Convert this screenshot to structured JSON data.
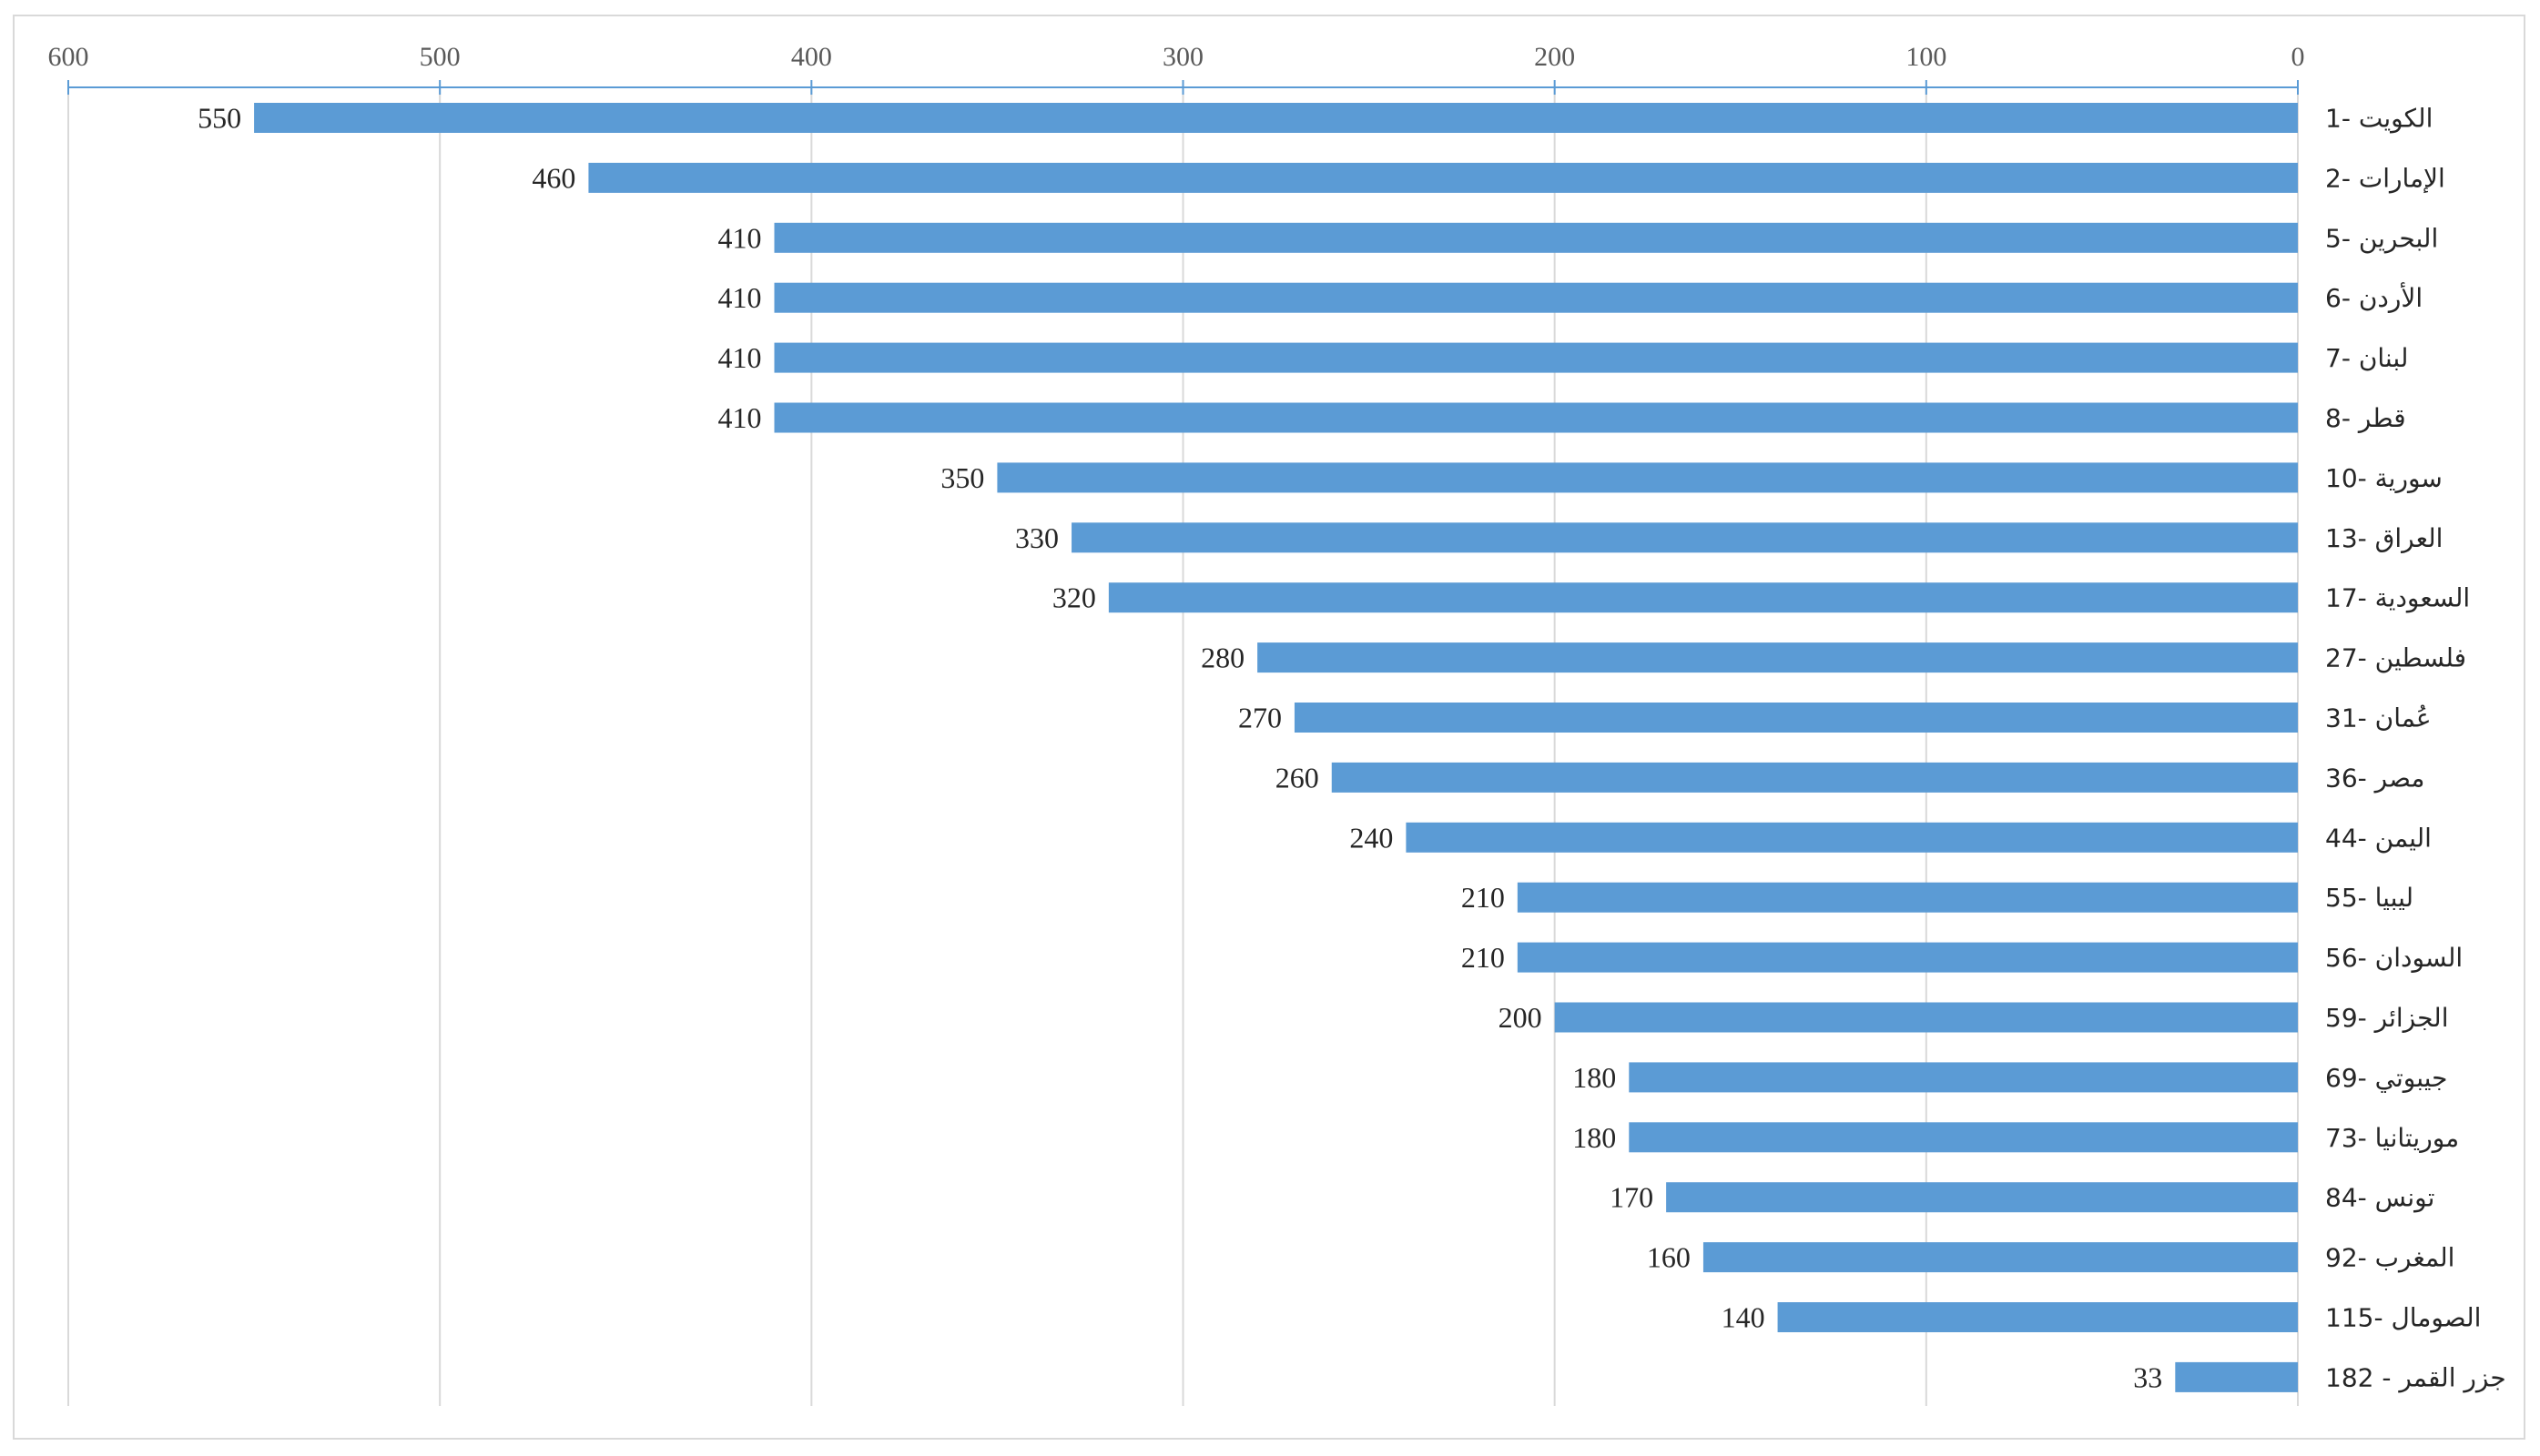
{
  "chart_data": {
    "type": "bar",
    "orientation": "horizontal",
    "x_axis_position": "top",
    "x_axis_reversed": true,
    "categories": [
      "1- الكويت",
      "2- الإمارات",
      "5- البحرين",
      "6- الأردن",
      "7- لبنان",
      "8- قطر",
      "10- سورية",
      "13- العراق",
      "17- السعودية",
      "27- فلسطين",
      "31- عُمان",
      "36- مصر",
      "44- اليمن",
      "55- ليبيا",
      "56- السودان",
      "59- الجزائر",
      "69- جيبوتي",
      "73- موريتانيا",
      "84- تونس",
      "92- المغرب",
      "115- الصومال",
      "182 - جزر القمر"
    ],
    "values": [
      550,
      460,
      410,
      410,
      410,
      410,
      350,
      330,
      320,
      280,
      270,
      260,
      240,
      210,
      210,
      200,
      180,
      180,
      170,
      160,
      140,
      33
    ],
    "value_labels": [
      "550",
      "460",
      "410",
      "410",
      "410",
      "410",
      "350",
      "330",
      "320",
      "280",
      "270",
      "260",
      "240",
      "210",
      "210",
      "200",
      "180",
      "180",
      "170",
      "160",
      "140",
      "33"
    ],
    "xlim": [
      0,
      600
    ],
    "x_ticks": [
      0,
      100,
      200,
      300,
      400,
      500,
      600
    ],
    "x_tick_labels": [
      "0",
      "100",
      "200",
      "300",
      "400",
      "500",
      "600"
    ],
    "title": "",
    "xlabel": "",
    "ylabel": "",
    "grid": "vertical",
    "legend": "none",
    "colors": {
      "bar": "#5b9bd5",
      "axis": "#5b9bd5",
      "grid": "#d9d9d9",
      "frame": "#d9d9d9"
    }
  }
}
